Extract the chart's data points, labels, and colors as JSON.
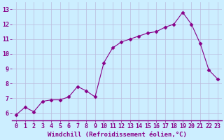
{
  "x": [
    0,
    1,
    2,
    3,
    4,
    5,
    6,
    7,
    8,
    9,
    10,
    11,
    12,
    13,
    14,
    15,
    16,
    17,
    18,
    19,
    20,
    21,
    22,
    23
  ],
  "y": [
    5.9,
    6.4,
    6.1,
    6.8,
    6.9,
    6.9,
    7.1,
    7.8,
    7.5,
    7.1,
    9.4,
    10.4,
    10.8,
    11.0,
    11.2,
    11.4,
    11.5,
    11.8,
    12.0,
    12.8,
    12.0,
    10.7,
    8.9,
    8.3
  ],
  "line_color": "#880088",
  "marker": "D",
  "marker_size": 2.5,
  "bg_color": "#cceeff",
  "grid_color": "#bbbbdd",
  "xlabel": "Windchill (Refroidissement éolien,°C)",
  "xlabel_color": "#880088",
  "xlabel_fontsize": 6.5,
  "tick_color": "#880088",
  "tick_fontsize": 6,
  "ylim": [
    5.5,
    13.5
  ],
  "xlim": [
    -0.5,
    23.5
  ],
  "yticks": [
    6,
    7,
    8,
    9,
    10,
    11,
    12,
    13
  ],
  "xticks": [
    0,
    1,
    2,
    3,
    4,
    5,
    6,
    7,
    8,
    9,
    10,
    11,
    12,
    13,
    14,
    15,
    16,
    17,
    18,
    19,
    20,
    21,
    22,
    23
  ],
  "spine_color": "#880088"
}
